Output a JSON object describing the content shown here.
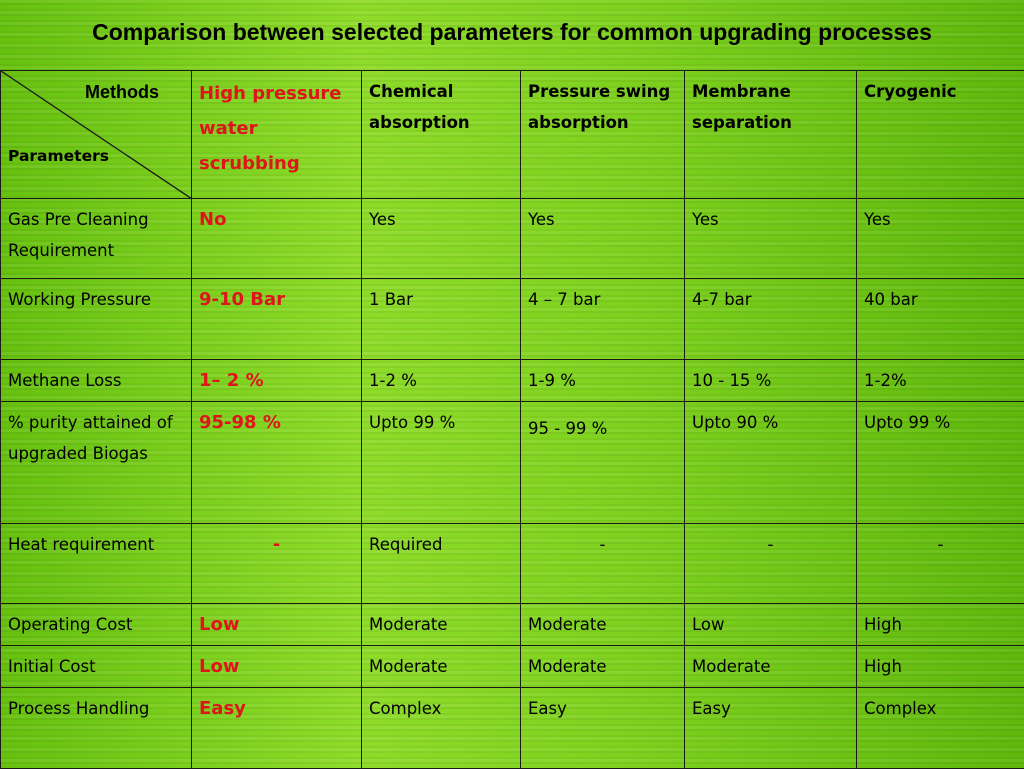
{
  "title": "Comparison between selected parameters for common upgrading processes",
  "header": {
    "methods_label": "Methods",
    "parameters_label": "Parameters",
    "columns": [
      "High pressure water scrubbing",
      "Chemical absorption",
      "Pressure swing absorption",
      "Membrane separation",
      "Cryogenic"
    ]
  },
  "rows": [
    {
      "param": "Gas Pre Cleaning Requirement",
      "values": [
        "No",
        "Yes",
        "Yes",
        "Yes",
        "Yes"
      ]
    },
    {
      "param": "Working Pressure",
      "values": [
        "9-10 Bar",
        "1 Bar",
        "4 – 7 bar",
        "4-7 bar",
        "40 bar"
      ]
    },
    {
      "param": "Methane Loss",
      "values": [
        "1– 2 %",
        "1-2 %",
        "1-9 %",
        "10 - 15 %",
        "1-2%"
      ]
    },
    {
      "param": "% purity attained of upgraded Biogas",
      "values": [
        "95-98 %",
        "Upto 99 %",
        "95 - 99 %",
        "Upto 90 %",
        "Upto 99 %"
      ]
    },
    {
      "param": "Heat requirement",
      "values": [
        "-",
        "Required",
        "-",
        "-",
        "-"
      ]
    },
    {
      "param": "Operating Cost",
      "values": [
        "Low",
        "Moderate",
        "Moderate",
        "Low",
        "High"
      ]
    },
    {
      "param": "Initial Cost",
      "values": [
        "Low",
        "Moderate",
        "Moderate",
        "Moderate",
        "High"
      ]
    },
    {
      "param": "Process Handling",
      "values": [
        "Easy",
        "Complex",
        "Easy",
        "Easy",
        "Complex"
      ]
    }
  ],
  "colors": {
    "highlight": "#e0141b",
    "background": "#7fd21f"
  }
}
